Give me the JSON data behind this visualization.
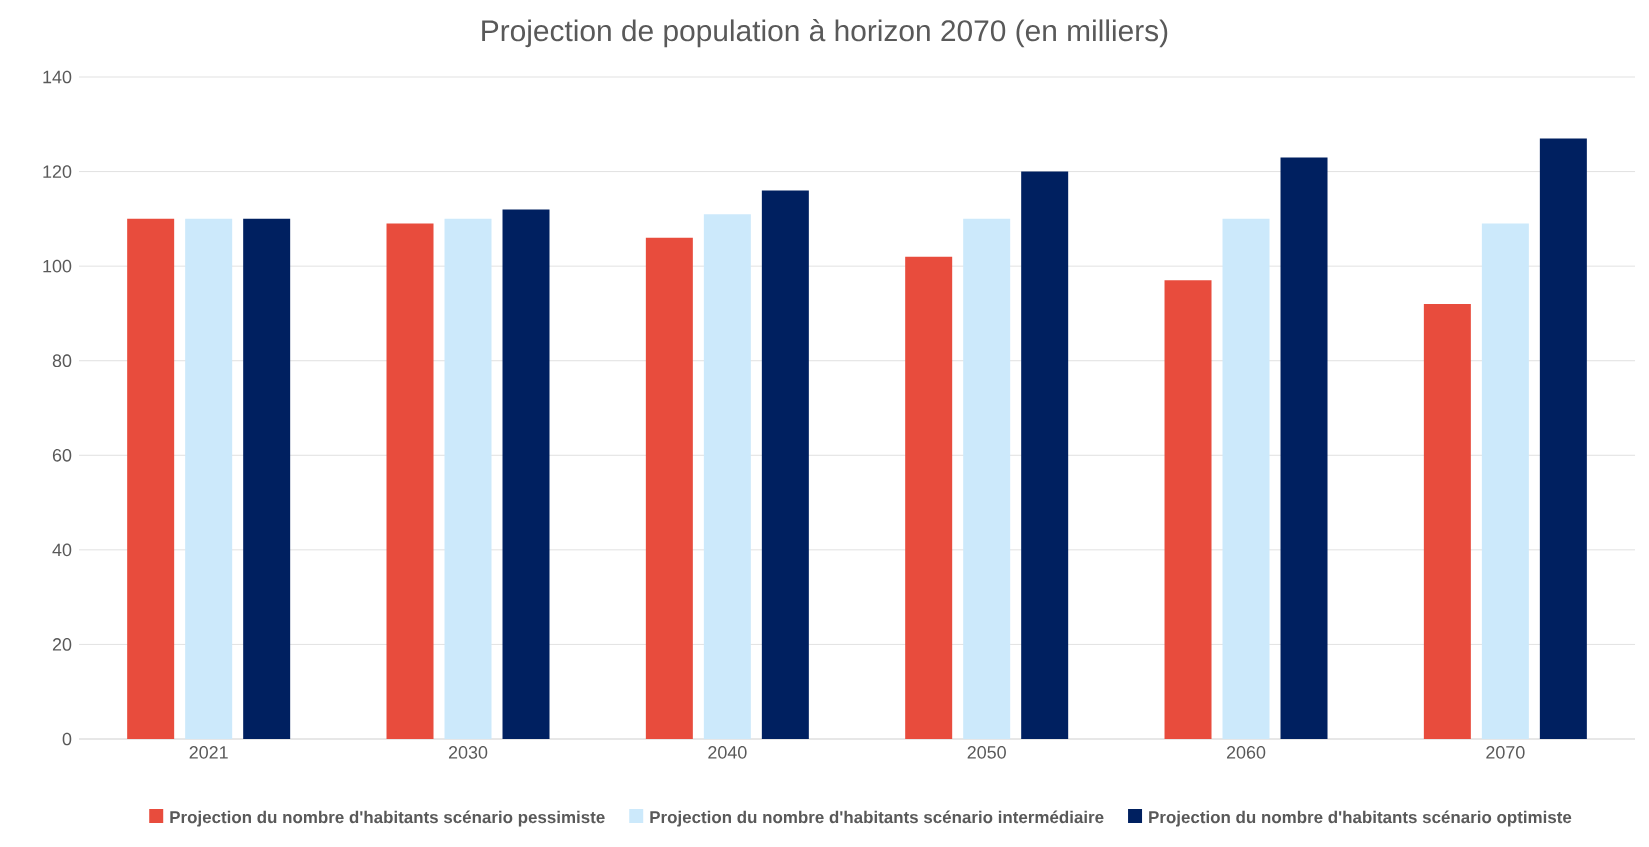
{
  "chart_data": {
    "type": "bar",
    "title": "Projection de population à horizon 2070 (en milliers)",
    "categories": [
      "2021",
      "2030",
      "2040",
      "2050",
      "2060",
      "2070"
    ],
    "series": [
      {
        "name": "Projection du nombre d'habitants scénario pessimiste",
        "color": "#e84c3d",
        "values": [
          110,
          109,
          106,
          102,
          97,
          92
        ]
      },
      {
        "name": "Projection du nombre d'habitants scénario intermédiaire",
        "color": "#cce9fb",
        "values": [
          110,
          110,
          111,
          110,
          110,
          109
        ]
      },
      {
        "name": "Projection du nombre d'habitants scénario optimiste",
        "color": "#002060",
        "values": [
          110,
          112,
          116,
          120,
          123,
          127
        ]
      }
    ],
    "ylim": [
      0,
      140
    ],
    "yticks": [
      0,
      20,
      40,
      60,
      80,
      100,
      120,
      140
    ],
    "grid": "y",
    "legend": "bottom"
  }
}
